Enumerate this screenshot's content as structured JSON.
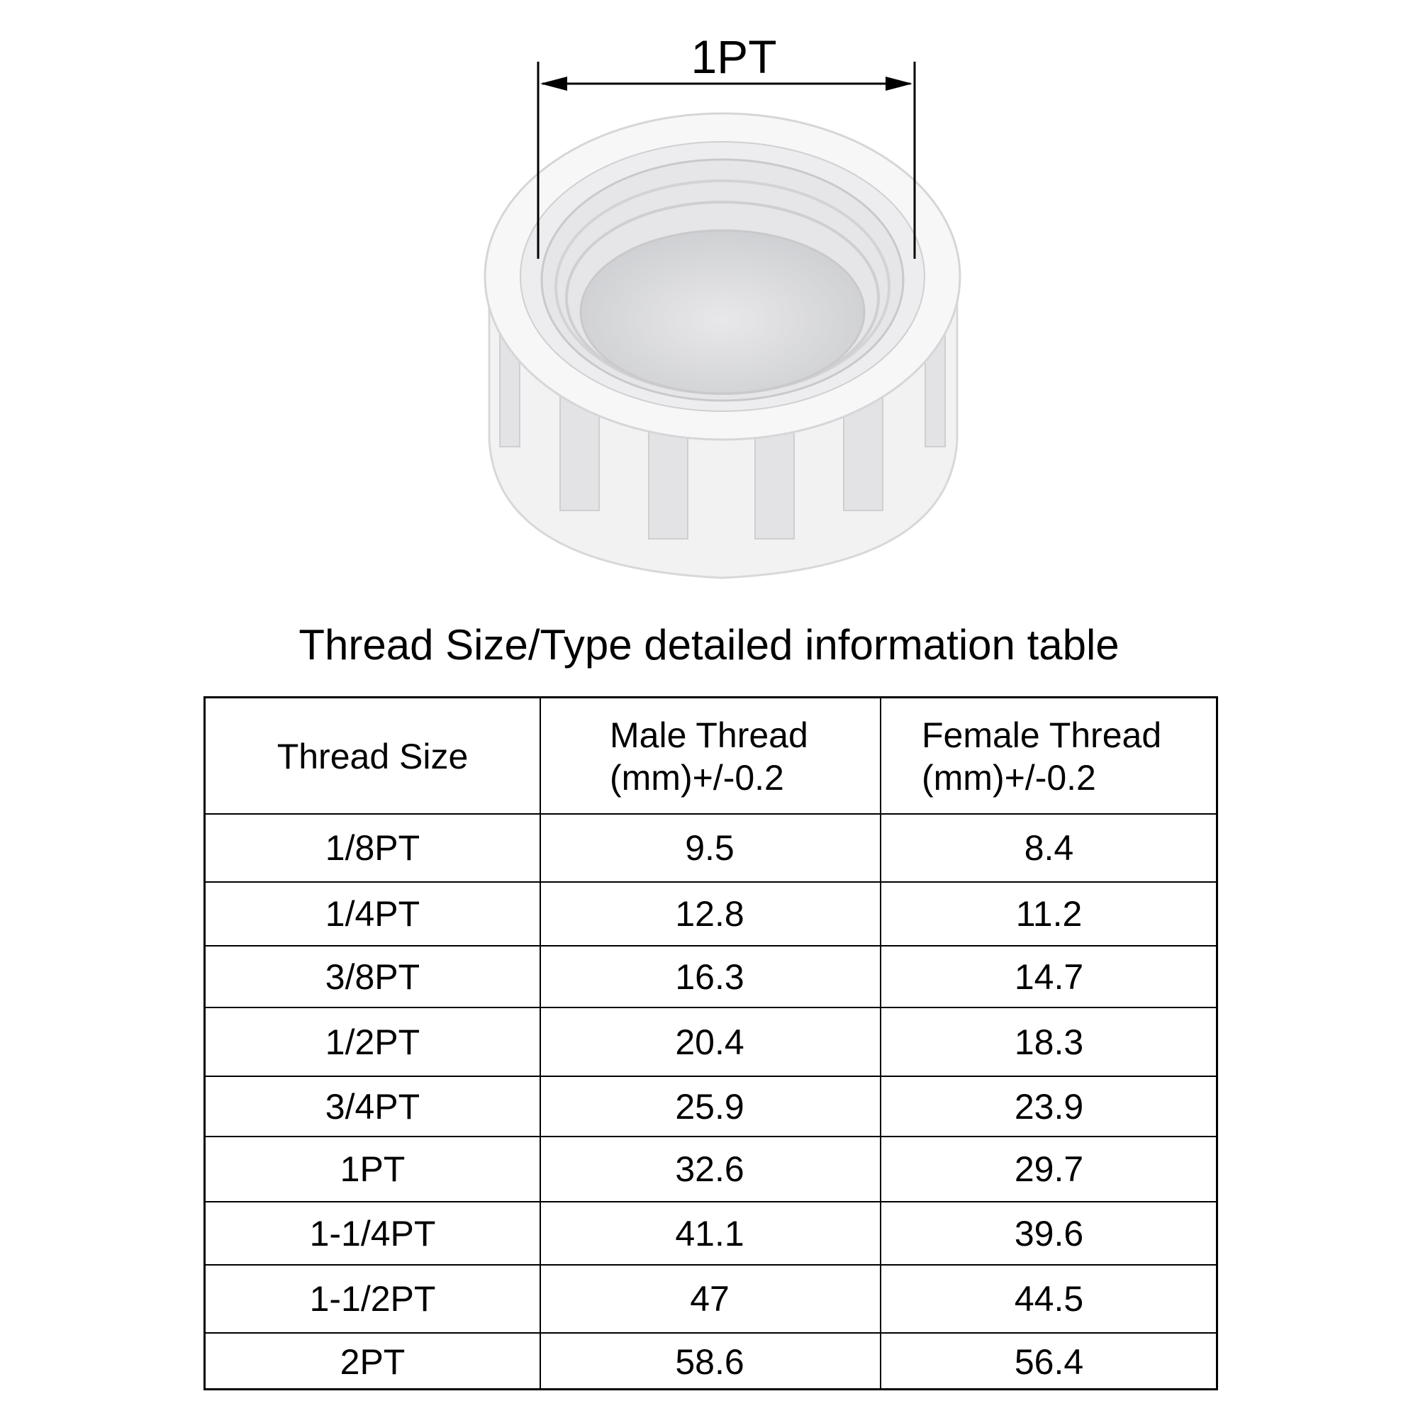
{
  "dimension_label": "1PT",
  "title": "Thread Size/Type detailed information table",
  "table": {
    "headers": [
      {
        "line1": "Thread Size",
        "line2": ""
      },
      {
        "line1": "Male Thread",
        "line2": "(mm)+/-0.2"
      },
      {
        "line1": "Female Thread",
        "line2": "(mm)+/-0.2"
      }
    ],
    "rows": [
      [
        "1/8PT",
        "9.5",
        "8.4"
      ],
      [
        "1/4PT",
        "12.8",
        "11.2"
      ],
      [
        "3/8PT",
        "16.3",
        "14.7"
      ],
      [
        "1/2PT",
        "20.4",
        "18.3"
      ],
      [
        "3/4PT",
        "25.9",
        "23.9"
      ],
      [
        "1PT",
        "32.6",
        "29.7"
      ],
      [
        "1-1/4PT",
        "41.1",
        "39.6"
      ],
      [
        "1-1/2PT",
        "47",
        "44.5"
      ],
      [
        "2PT",
        "58.6",
        "56.4"
      ]
    ]
  }
}
